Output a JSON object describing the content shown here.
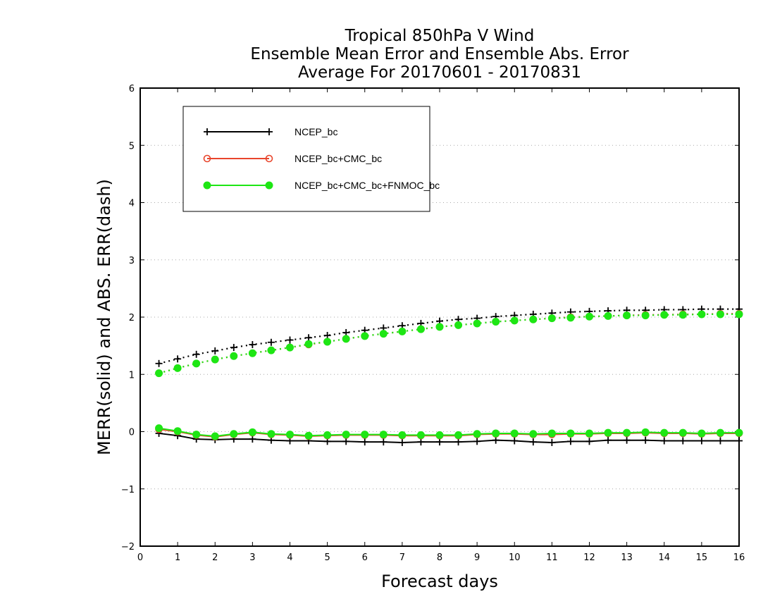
{
  "chart_data": {
    "type": "line",
    "title_lines": [
      "Tropical 850hPa V Wind",
      "Ensemble Mean Error and Ensemble Abs. Error",
      "Average For 20170601 - 20170831"
    ],
    "xlabel": "Forecast days",
    "ylabel": "MERR(solid) and ABS. ERR(dash)",
    "xlim": [
      0,
      16
    ],
    "ylim": [
      -2,
      6
    ],
    "x_ticks": [
      0,
      1,
      2,
      3,
      4,
      5,
      6,
      7,
      8,
      9,
      10,
      11,
      12,
      13,
      14,
      15,
      16
    ],
    "y_ticks": [
      -2,
      -1,
      0,
      1,
      2,
      3,
      4,
      5,
      6
    ],
    "y_tick_labels": [
      "−2",
      "−1",
      "0",
      "1",
      "2",
      "3",
      "4",
      "5",
      "6"
    ],
    "grid": "horizontal dotted",
    "legend_position": "top-left",
    "x": [
      0.5,
      1,
      1.5,
      2,
      2.5,
      3,
      3.5,
      4,
      4.5,
      5,
      5.5,
      6,
      6.5,
      7,
      7.5,
      8,
      8.5,
      9,
      9.5,
      10,
      10.5,
      11,
      11.5,
      12,
      12.5,
      13,
      13.5,
      14,
      14.5,
      15,
      15.5,
      16
    ],
    "series": [
      {
        "name": "NCEP_bc",
        "color": "#000000",
        "marker": "plus",
        "merr": [
          -0.03,
          -0.07,
          -0.13,
          -0.14,
          -0.13,
          -0.13,
          -0.15,
          -0.16,
          -0.16,
          -0.17,
          -0.17,
          -0.18,
          -0.18,
          -0.19,
          -0.18,
          -0.18,
          -0.18,
          -0.17,
          -0.15,
          -0.16,
          -0.18,
          -0.19,
          -0.17,
          -0.17,
          -0.15,
          -0.15,
          -0.15,
          -0.16,
          -0.16,
          -0.16,
          -0.16,
          -0.16
        ],
        "abserr": [
          1.19,
          1.27,
          1.35,
          1.41,
          1.47,
          1.52,
          1.56,
          1.6,
          1.64,
          1.68,
          1.73,
          1.77,
          1.81,
          1.85,
          1.89,
          1.93,
          1.96,
          1.98,
          2.01,
          2.03,
          2.05,
          2.07,
          2.09,
          2.1,
          2.11,
          2.12,
          2.12,
          2.13,
          2.13,
          2.14,
          2.14,
          2.14
        ]
      },
      {
        "name": "NCEP_bc+CMC_bc",
        "color": "#e8452c",
        "marker": "open-circle",
        "merr": [
          0.04,
          0.0,
          -0.06,
          -0.09,
          -0.05,
          -0.02,
          -0.05,
          -0.06,
          -0.08,
          -0.07,
          -0.06,
          -0.06,
          -0.06,
          -0.07,
          -0.07,
          -0.07,
          -0.07,
          -0.05,
          -0.04,
          -0.04,
          -0.05,
          -0.05,
          -0.04,
          -0.04,
          -0.03,
          -0.03,
          -0.02,
          -0.03,
          -0.03,
          -0.04,
          -0.03,
          -0.03
        ],
        "abserr": [
          1.02,
          1.11,
          1.19,
          1.26,
          1.32,
          1.37,
          1.42,
          1.47,
          1.52,
          1.57,
          1.62,
          1.67,
          1.71,
          1.75,
          1.79,
          1.83,
          1.86,
          1.89,
          1.92,
          1.94,
          1.96,
          1.98,
          2.0,
          2.01,
          2.02,
          2.03,
          2.04,
          2.04,
          2.05,
          2.05,
          2.06,
          2.06
        ]
      },
      {
        "name": "NCEP_bc+CMC_bc+FNMOC_bc",
        "color": "#1ee614",
        "marker": "filled-circle",
        "merr": [
          0.06,
          0.01,
          -0.05,
          -0.08,
          -0.04,
          -0.01,
          -0.04,
          -0.05,
          -0.07,
          -0.06,
          -0.05,
          -0.05,
          -0.05,
          -0.06,
          -0.06,
          -0.06,
          -0.06,
          -0.04,
          -0.03,
          -0.03,
          -0.04,
          -0.03,
          -0.03,
          -0.03,
          -0.02,
          -0.02,
          -0.01,
          -0.02,
          -0.02,
          -0.03,
          -0.02,
          -0.02
        ],
        "abserr": [
          1.02,
          1.11,
          1.19,
          1.26,
          1.32,
          1.37,
          1.42,
          1.47,
          1.53,
          1.57,
          1.62,
          1.67,
          1.71,
          1.75,
          1.79,
          1.83,
          1.86,
          1.89,
          1.92,
          1.94,
          1.96,
          1.98,
          1.99,
          2.01,
          2.02,
          2.03,
          2.03,
          2.04,
          2.04,
          2.05,
          2.05,
          2.05
        ]
      }
    ]
  }
}
